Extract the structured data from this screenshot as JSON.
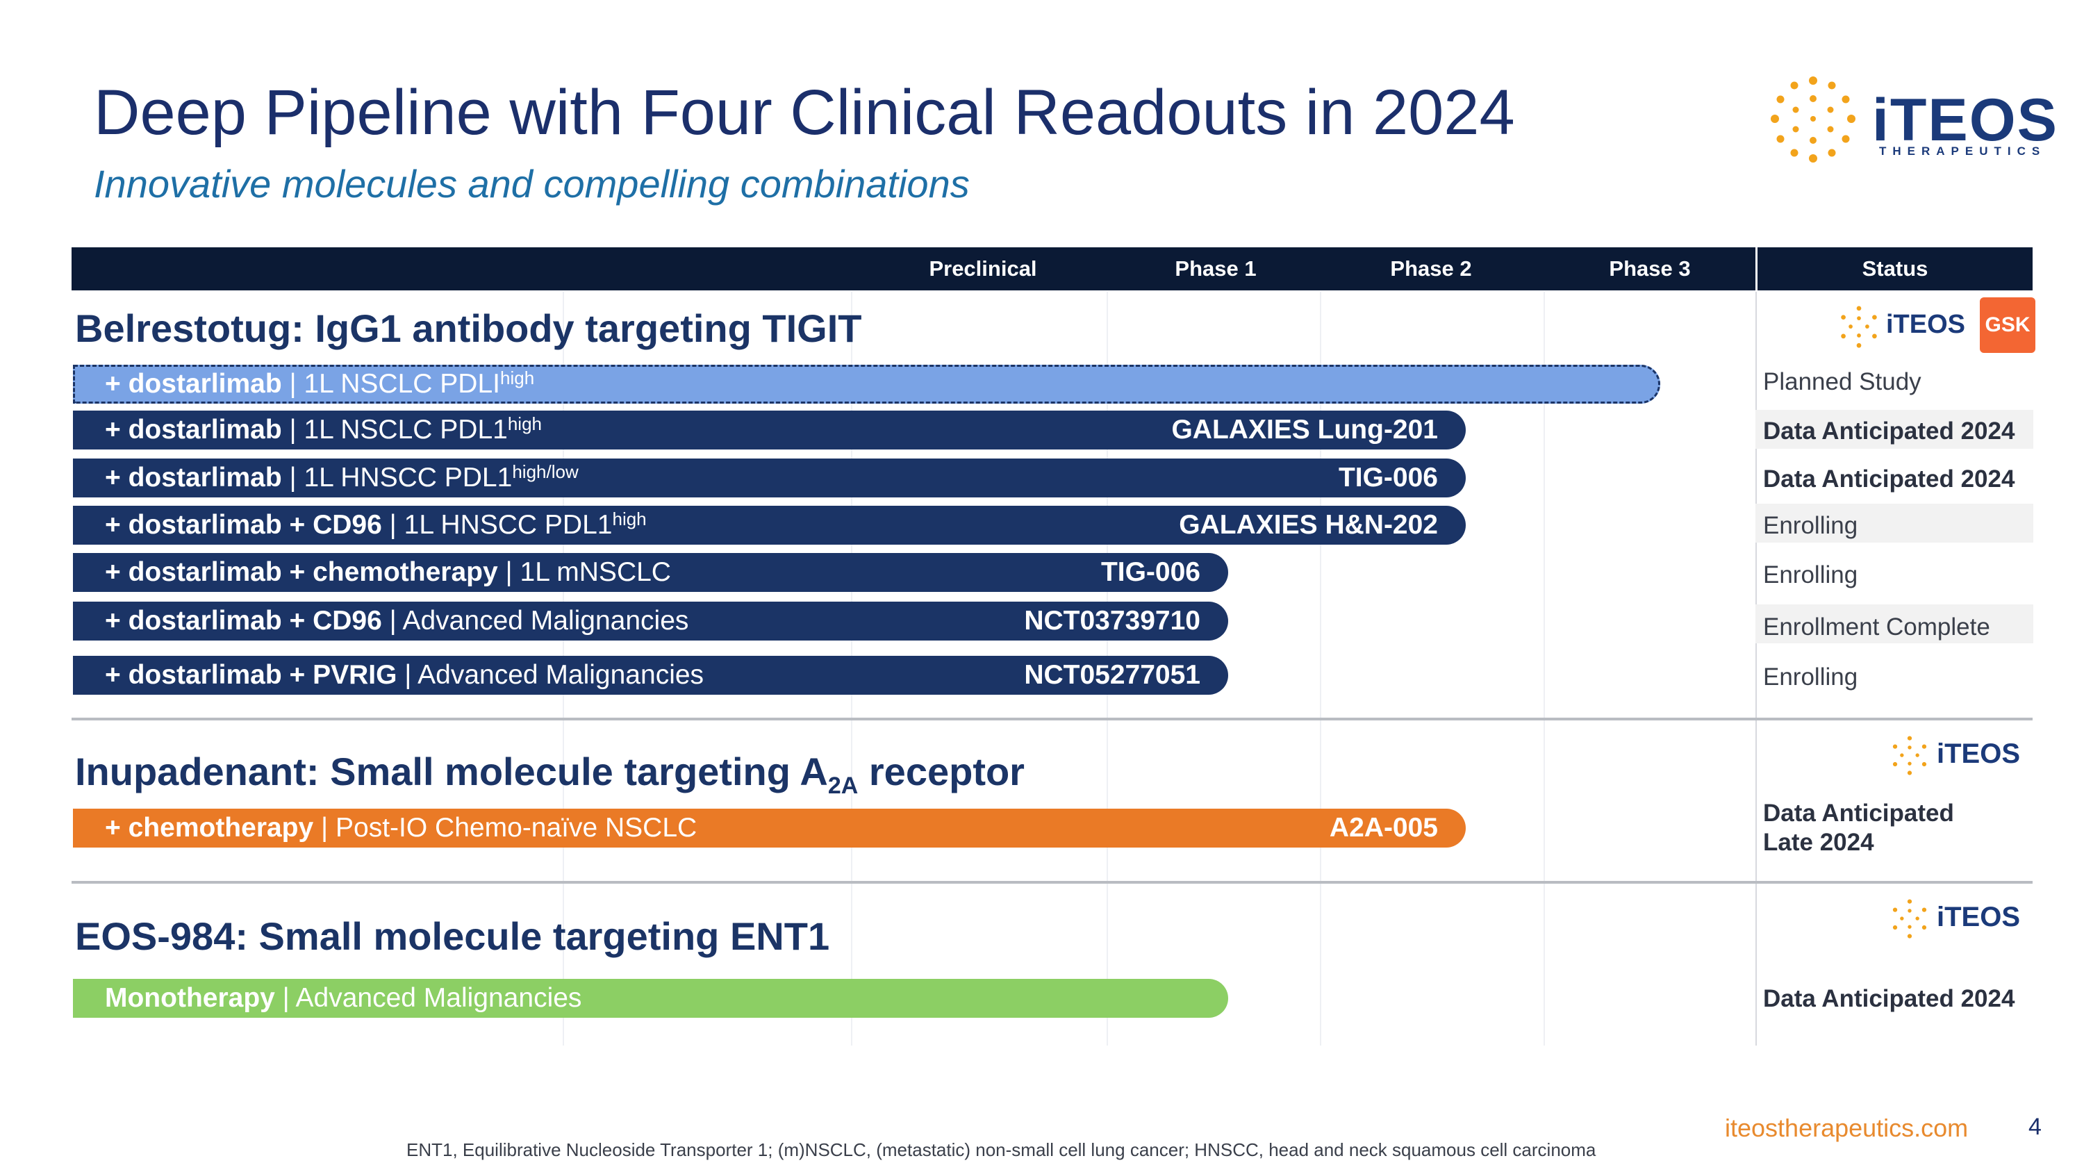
{
  "title": "Deep Pipeline with Four Clinical Readouts in 2024",
  "subtitle": "Innovative molecules and compelling combinations",
  "logo": {
    "name": "iTEOS",
    "tagline": "THERAPEUTICS",
    "partner": "GSK"
  },
  "colors": {
    "header_bg": "#0b1a35",
    "navy_bar": "#1b3466",
    "planned_bar": "#7aa3e5",
    "orange_bar": "#ea7a26",
    "green_bar": "#8ccf64",
    "accent_orange": "#e88a2e",
    "logo_dot": "#f2a31b"
  },
  "chart_data": {
    "type": "table",
    "columns": [
      "Preclinical",
      "Phase 1",
      "Phase 2",
      "Phase 3",
      "Status"
    ],
    "sections": [
      {
        "title": "Belrestotug: IgG1 antibody targeting TIGIT",
        "rows": [
          {
            "drug": "+ dostarlimab",
            "indication": "1L NSCLC PDLI",
            "sup": "high",
            "trial": "",
            "phase": "Phase 3",
            "style": "planned",
            "status": "Planned Study",
            "status_bold": false
          },
          {
            "drug": "+ dostarlimab",
            "indication": "1L NSCLC PDL1",
            "sup": "high",
            "trial": "GALAXIES Lung-201",
            "phase": "Phase 2",
            "style": "navy",
            "status": "Data Anticipated 2024",
            "status_bold": true
          },
          {
            "drug": "+ dostarlimab",
            "indication": "1L HNSCC PDL1",
            "sup": "high/low",
            "trial": "TIG-006",
            "phase": "Phase 2",
            "style": "navy",
            "status": "Data Anticipated 2024",
            "status_bold": true
          },
          {
            "drug": "+ dostarlimab + CD96",
            "indication": "1L HNSCC PDL1",
            "sup": "high",
            "trial": "GALAXIES H&N-202",
            "phase": "Phase 2",
            "style": "navy",
            "status": "Enrolling",
            "status_bold": false
          },
          {
            "drug": "+ dostarlimab + chemotherapy",
            "indication": "1L mNSCLC",
            "sup": "",
            "trial": "TIG-006",
            "phase": "Phase 1",
            "style": "navy",
            "status": "Enrolling",
            "status_bold": false
          },
          {
            "drug": "+ dostarlimab + CD96",
            "indication": "Advanced Malignancies",
            "sup": "",
            "trial": "NCT03739710",
            "phase": "Phase 1",
            "style": "navy",
            "status": "Enrollment Complete",
            "status_bold": false
          },
          {
            "drug": "+ dostarlimab + PVRIG",
            "indication": "Advanced Malignancies",
            "sup": "",
            "trial": "NCT05277051",
            "phase": "Phase 1",
            "style": "navy",
            "status": "Enrolling",
            "status_bold": false
          }
        ]
      },
      {
        "title_main": "Inupadenant: Small molecule targeting A",
        "title_sub": "2A",
        "title_end": " receptor",
        "rows": [
          {
            "drug": "+ chemotherapy",
            "indication": "Post-IO Chemo-naïve NSCLC",
            "sup": "",
            "trial": "A2A-005",
            "phase": "Phase 2",
            "style": "orange",
            "status": "Data Anticipated",
            "status2": "Late 2024",
            "status_bold": true
          }
        ]
      },
      {
        "title": "EOS-984: Small molecule targeting ENT1",
        "rows": [
          {
            "drug": "Monotherapy",
            "indication": "Advanced Malignancies",
            "sup": "",
            "trial": "",
            "phase": "Phase 1",
            "style": "green",
            "status": "Data Anticipated 2024",
            "status_bold": true
          }
        ]
      }
    ]
  },
  "footer": "ENT1, Equilibrative Nucleoside Transporter 1; (m)NSCLC, (metastatic) non-small cell lung cancer; HNSCC, head and neck squamous cell carcinoma",
  "website": "iteostherapeutics.com",
  "page_number": "4"
}
